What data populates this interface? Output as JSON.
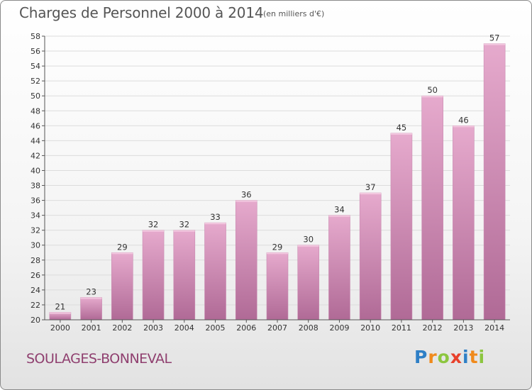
{
  "title": "Charges de Personnel 2000 à 2014",
  "subtitle": "(en milliers d'€)",
  "place": "SOULAGES-BONNEVAL",
  "logo": {
    "letters": [
      {
        "ch": "P",
        "color": "#2e7fc6"
      },
      {
        "ch": "r",
        "color": "#f08a1c"
      },
      {
        "ch": "o",
        "color": "#8cc63f"
      },
      {
        "ch": "x",
        "color": "#e8412c"
      },
      {
        "ch": "i",
        "color": "#2e7fc6"
      },
      {
        "ch": "t",
        "color": "#f08a1c"
      },
      {
        "ch": "i",
        "color": "#8cc63f"
      }
    ]
  },
  "colors": {
    "bar_light": "#e6aacd",
    "bar_dark": "#b06a96",
    "axis": "#555555",
    "grid": "#dcdcdc"
  },
  "chart_data": {
    "type": "bar",
    "title": "Charges de Personnel 2000 à 2014",
    "subtitle": "(en milliers d'€)",
    "categories": [
      "2000",
      "2001",
      "2002",
      "2003",
      "2004",
      "2005",
      "2006",
      "2007",
      "2008",
      "2009",
      "2010",
      "2011",
      "2012",
      "2013",
      "2014"
    ],
    "values": [
      21,
      23,
      29,
      32,
      32,
      33,
      36,
      29,
      30,
      34,
      37,
      45,
      50,
      46,
      57
    ],
    "ylim": [
      20,
      58
    ],
    "yticks": [
      20,
      22,
      24,
      26,
      28,
      30,
      32,
      34,
      36,
      38,
      40,
      42,
      44,
      46,
      48,
      50,
      52,
      54,
      56,
      58
    ],
    "grid": true,
    "legend": "none"
  }
}
